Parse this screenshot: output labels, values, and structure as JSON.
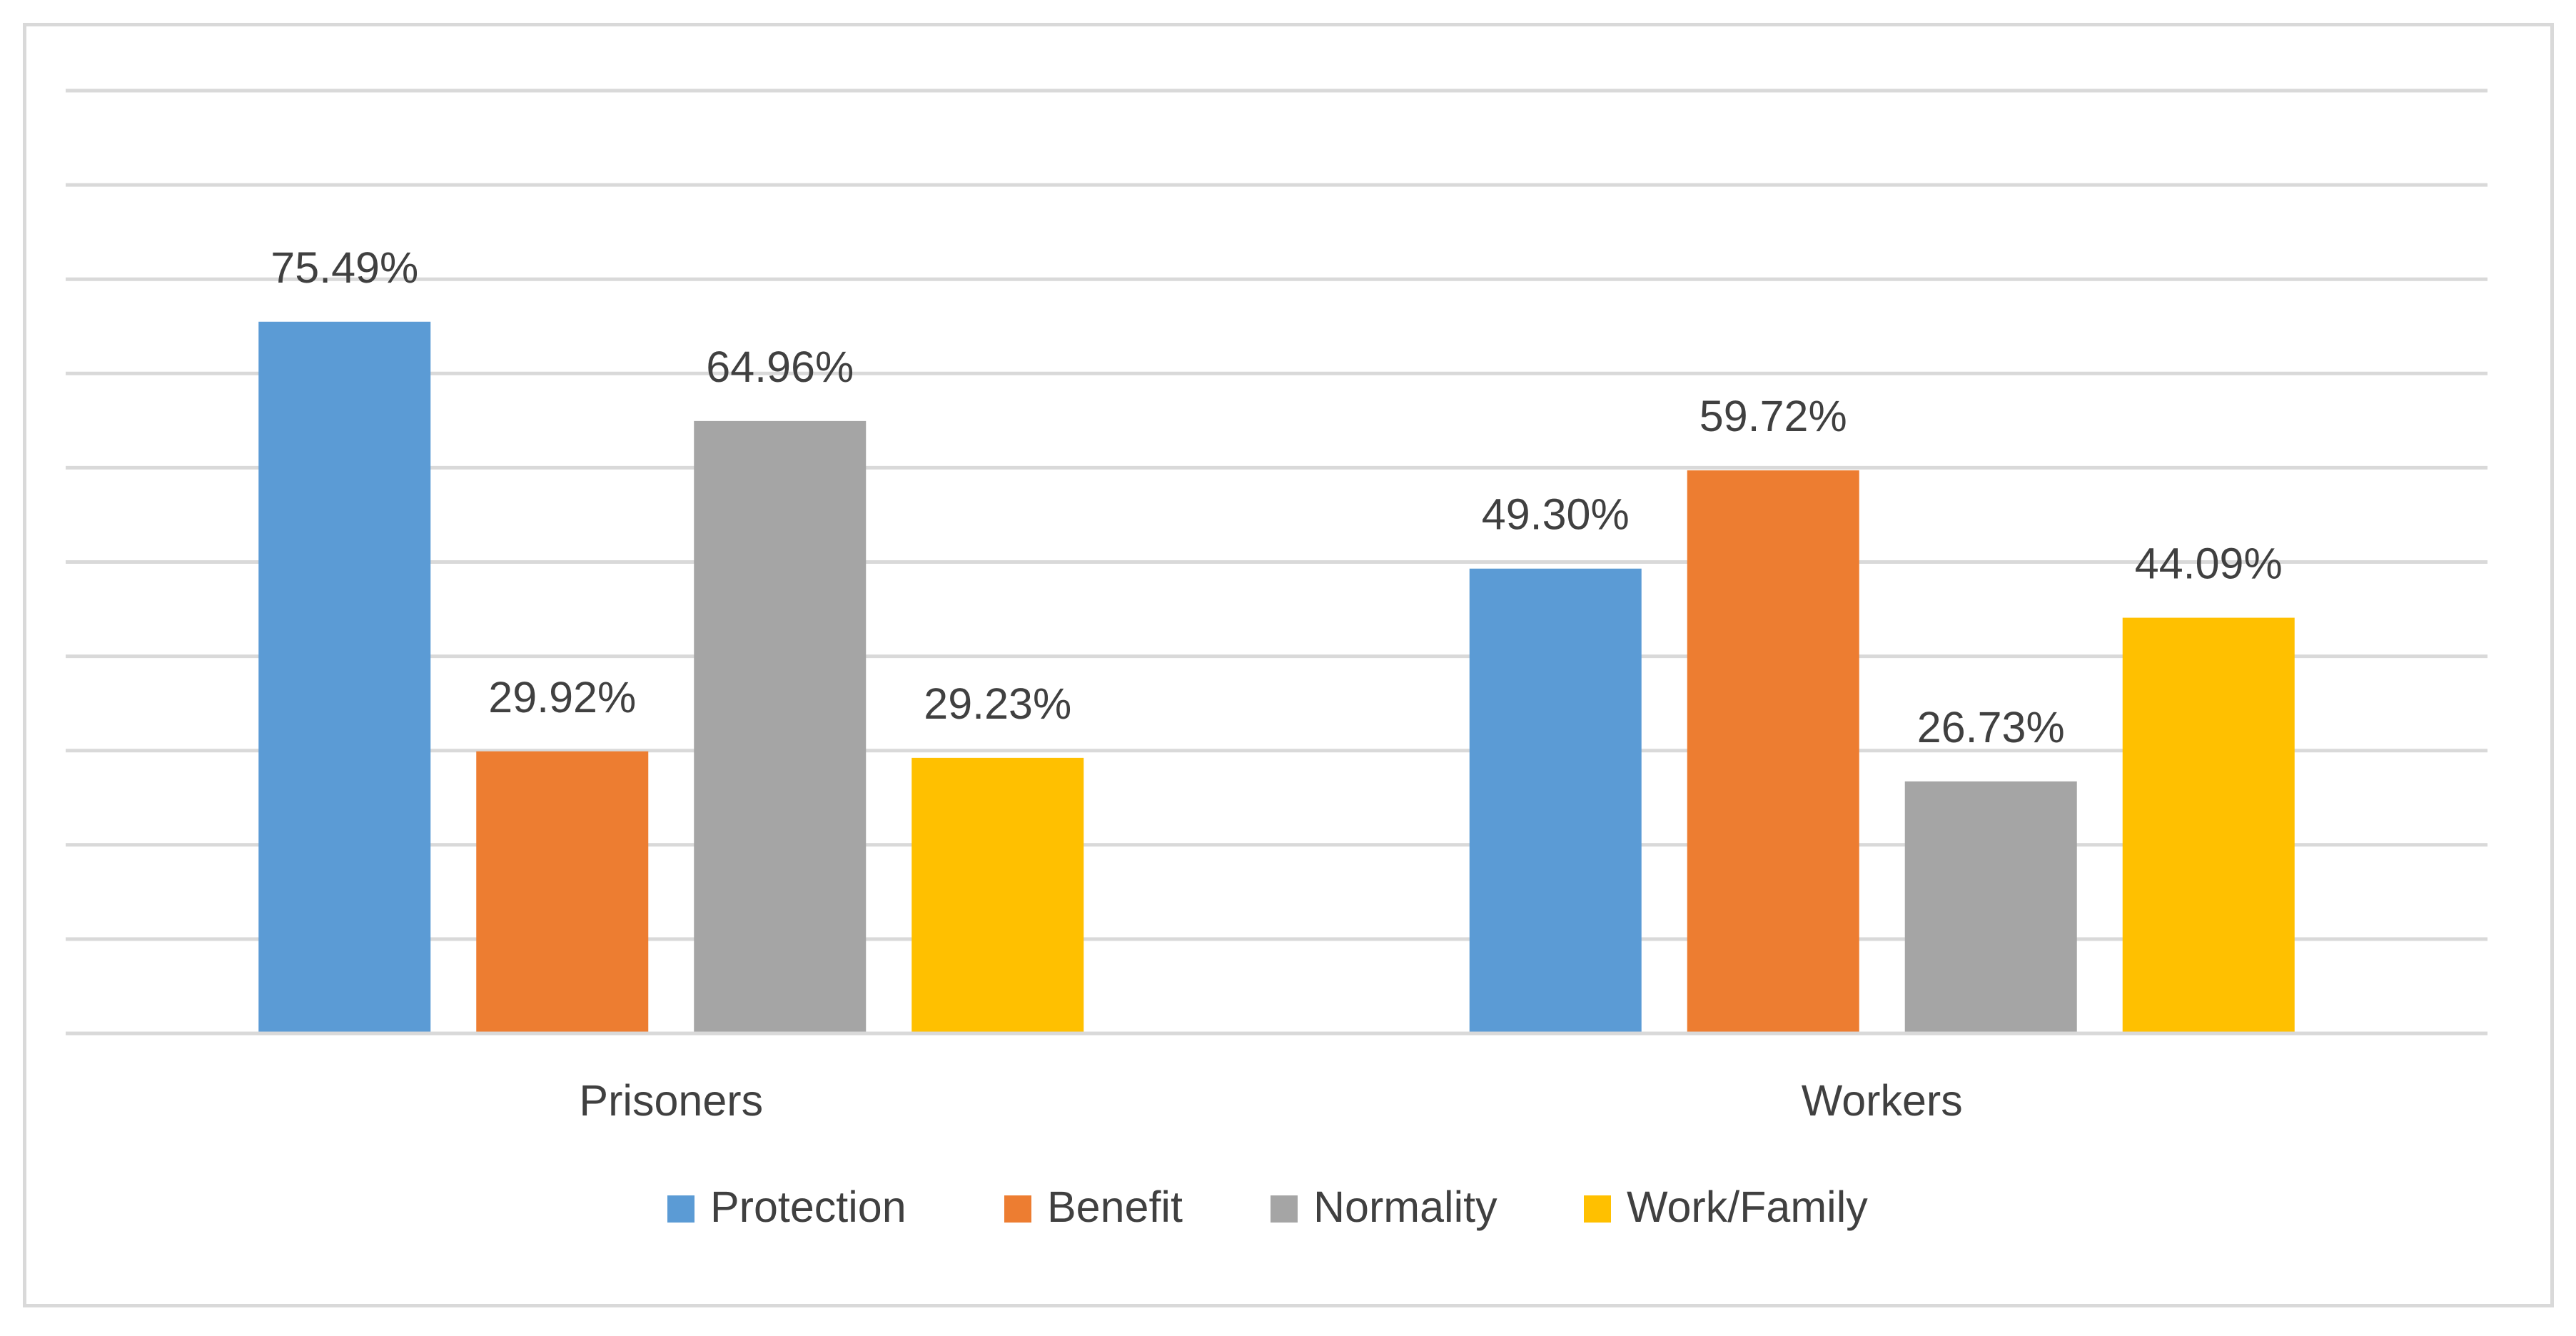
{
  "chart_data": {
    "type": "bar",
    "categories": [
      "Prisoners",
      "Workers"
    ],
    "series": [
      {
        "name": "Protection",
        "color": "#5b9bd5",
        "values": [
          75.49,
          49.3
        ],
        "labels": [
          "75.49%",
          "49.30%"
        ]
      },
      {
        "name": "Benefit",
        "color": "#ed7d31",
        "values": [
          29.92,
          59.72
        ],
        "labels": [
          "29.92%",
          "59.72%"
        ]
      },
      {
        "name": "Normality",
        "color": "#a5a5a5",
        "values": [
          64.96,
          26.73
        ],
        "labels": [
          "64.96%",
          "26.73%"
        ]
      },
      {
        "name": "Work/Family",
        "color": "#ffc000",
        "values": [
          29.23,
          44.09
        ],
        "labels": [
          "29.23%",
          "44.09%"
        ]
      }
    ],
    "ylim": [
      0,
      100
    ],
    "gridlines": 10,
    "title": "",
    "xlabel": "",
    "ylabel": "",
    "y_tick_labels_shown": false,
    "legend_position": "bottom"
  }
}
